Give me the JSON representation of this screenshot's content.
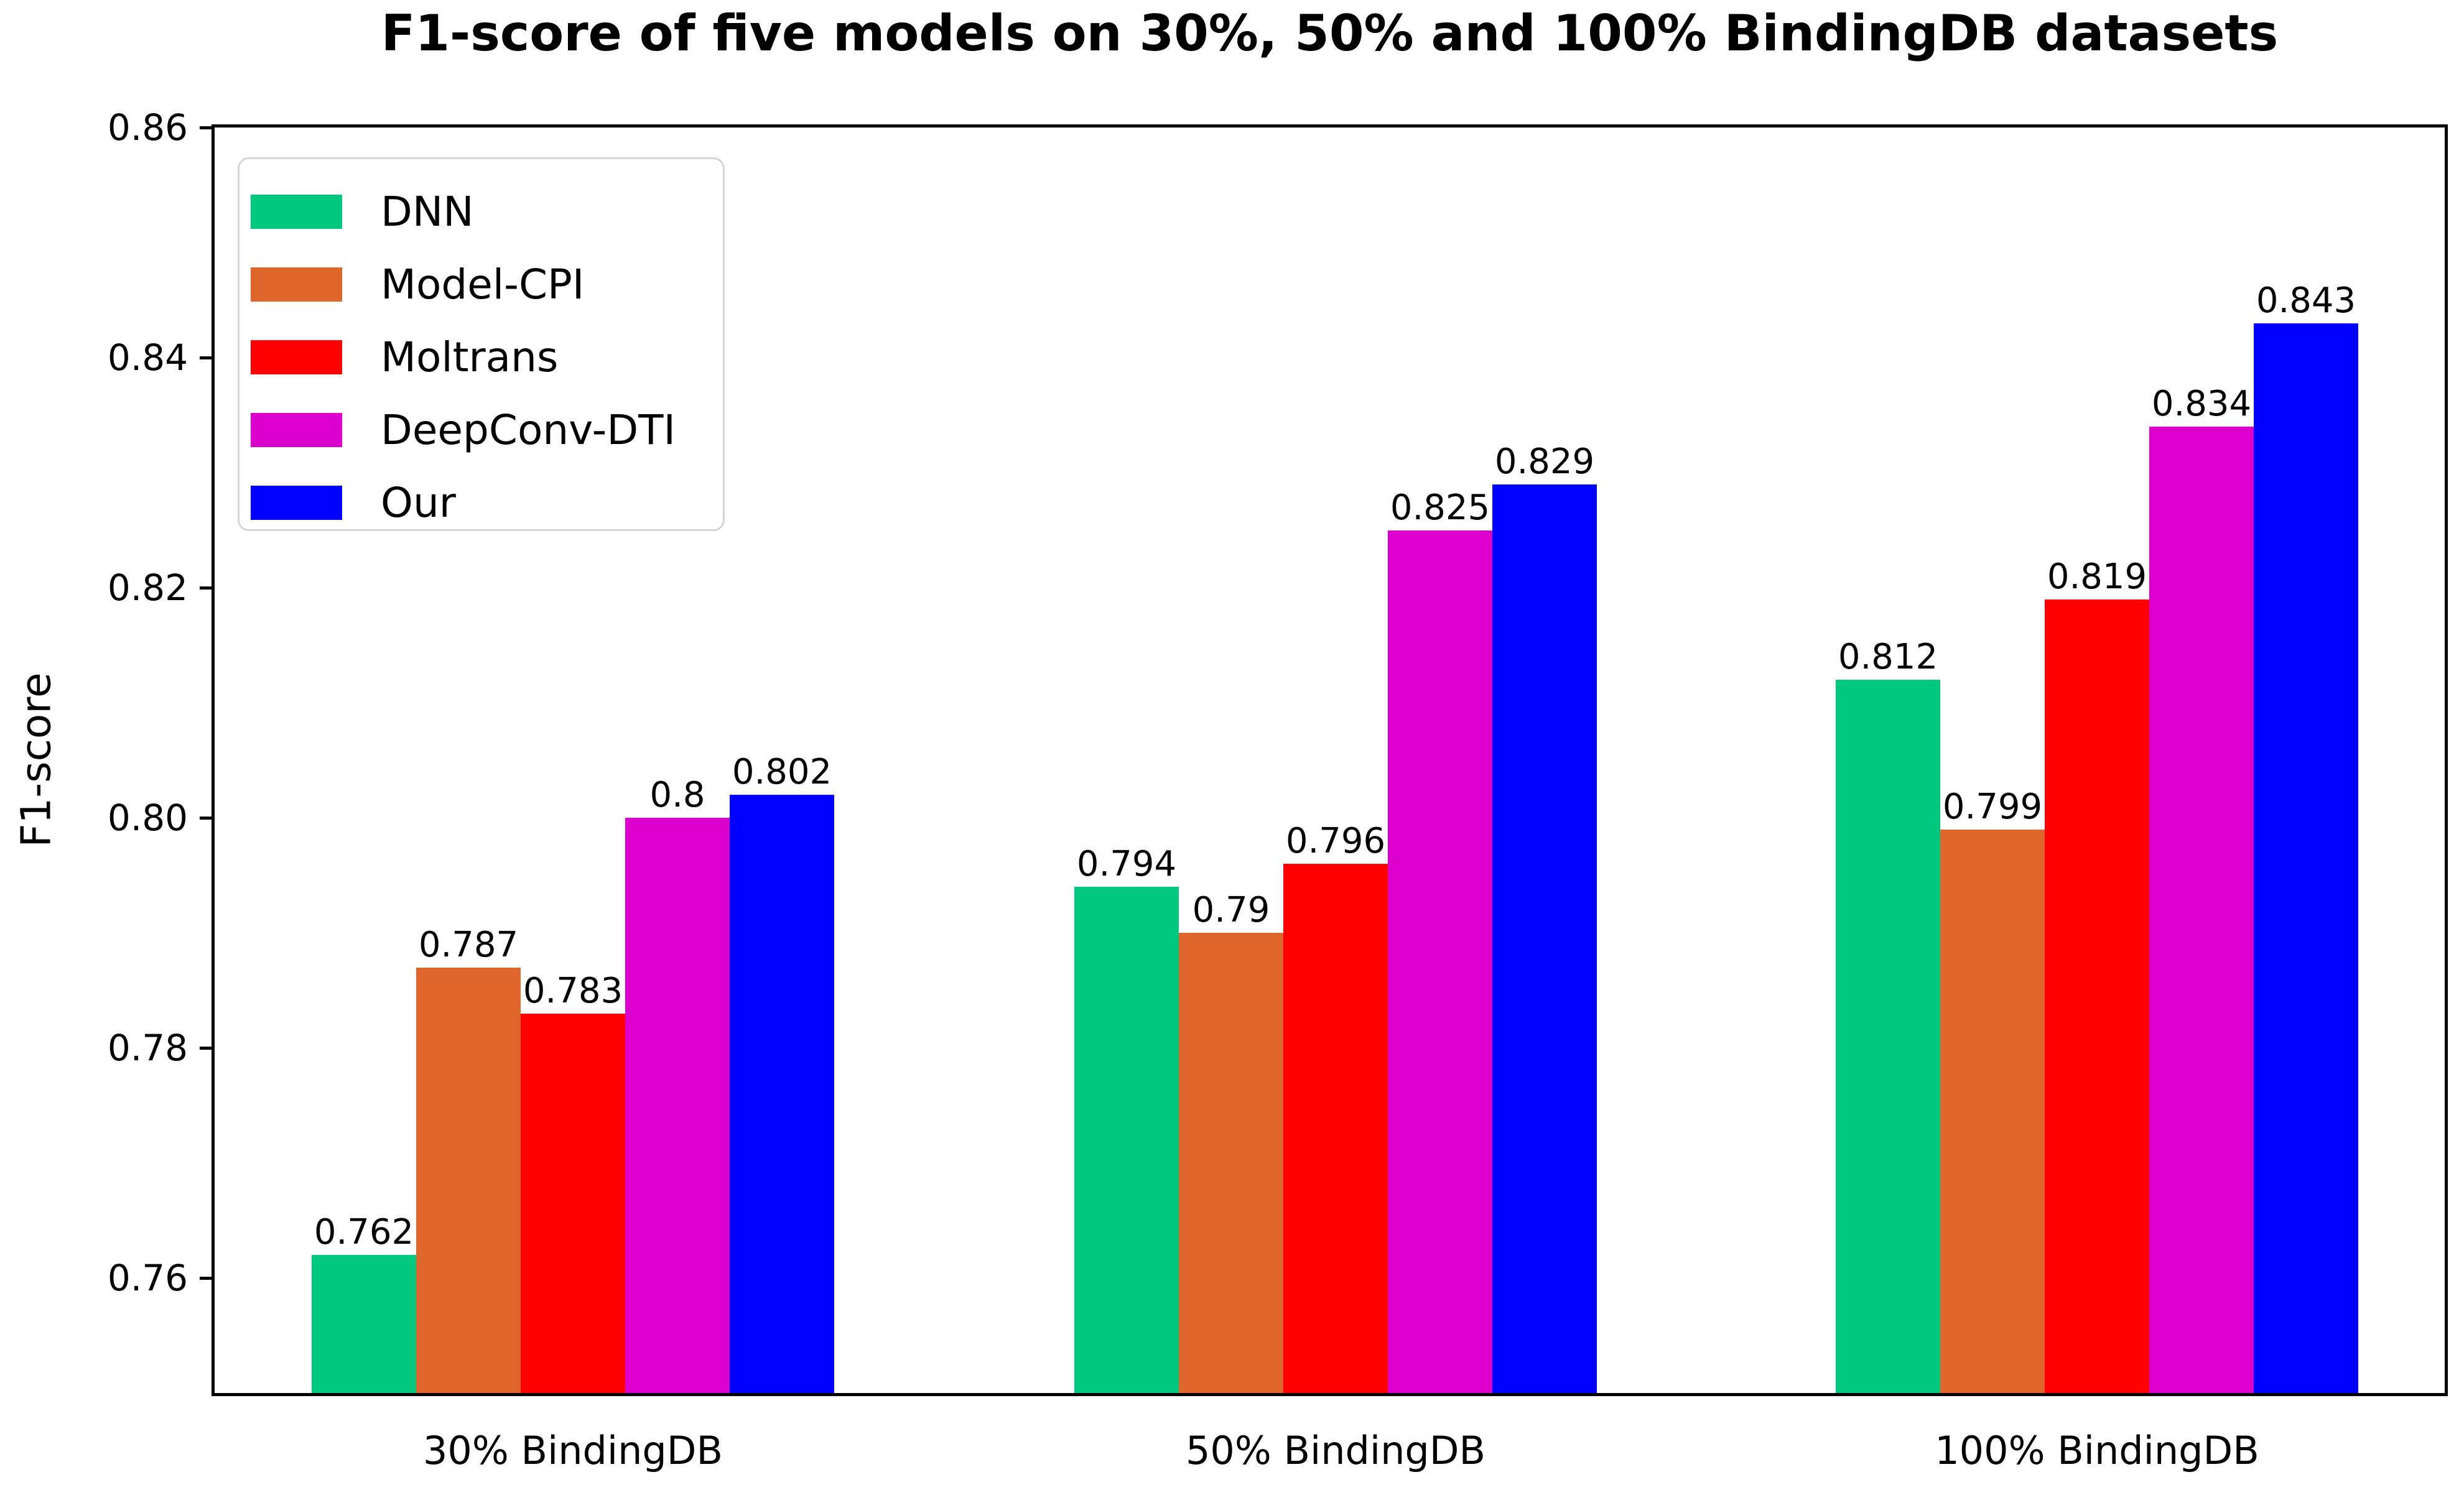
{
  "figure": {
    "background": "#ffffff"
  },
  "chart_data": {
    "type": "bar",
    "title": "F1-score of five models on 30%, 50% and 100% BindingDB datasets",
    "xlabel": "",
    "ylabel": "F1-score",
    "categories": [
      "30% BindingDB",
      "50% BindingDB",
      "100% BindingDB"
    ],
    "series": [
      {
        "name": "DNN",
        "color": "#00c87e",
        "values": [
          0.762,
          0.794,
          0.812
        ],
        "labels": [
          "0.762",
          "0.794",
          "0.812"
        ]
      },
      {
        "name": "Model-CPI",
        "color": "#de662b",
        "values": [
          0.787,
          0.79,
          0.799
        ],
        "labels": [
          "0.787",
          "0.79",
          "0.799"
        ]
      },
      {
        "name": "Moltrans",
        "color": "#ff0000",
        "values": [
          0.783,
          0.796,
          0.819
        ],
        "labels": [
          "0.783",
          "0.796",
          "0.819"
        ]
      },
      {
        "name": "DeepConv-DTI",
        "color": "#dc00cc",
        "values": [
          0.8,
          0.825,
          0.834
        ],
        "labels": [
          "0.8",
          "0.825",
          "0.834"
        ]
      },
      {
        "name": "Our",
        "color": "#0000ff",
        "values": [
          0.802,
          0.829,
          0.843
        ],
        "labels": [
          "0.802",
          "0.829",
          "0.843"
        ]
      }
    ],
    "ylim": [
      0.75,
      0.86
    ],
    "yticks": [
      "0.86",
      "0.84",
      "0.82",
      "0.80",
      "0.78",
      "0.76"
    ],
    "ytick_values": [
      0.86,
      0.84,
      0.82,
      0.8,
      0.78,
      0.76
    ],
    "grid": false,
    "legend_position": "upper left",
    "bar_edge": "none",
    "axis_color": "#000000"
  }
}
